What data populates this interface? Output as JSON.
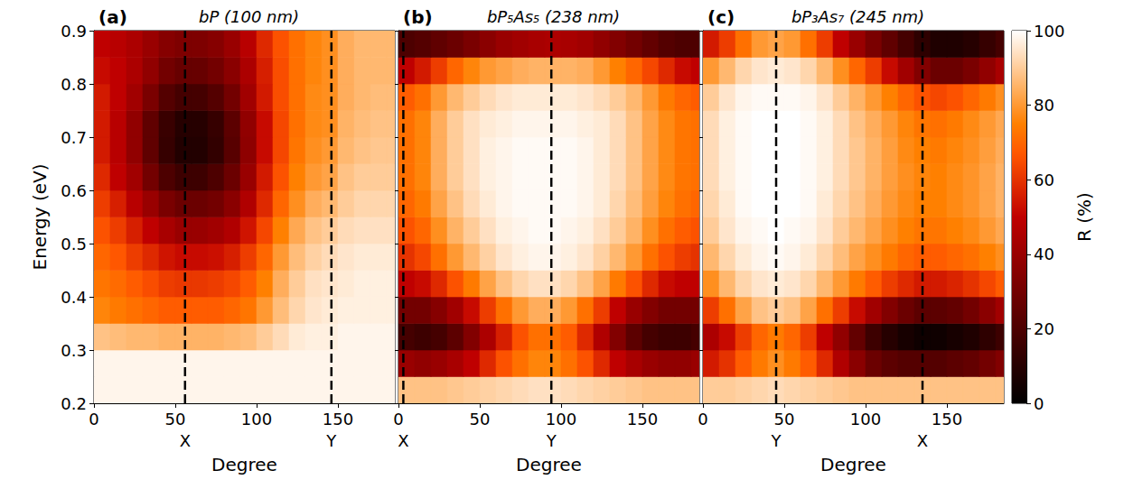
{
  "chart_data": [
    {
      "type": "heatmap",
      "title": "bP (100 nm)",
      "panel_label": "(a)",
      "xlabel": "Degree",
      "ylabel": "Energy (eV)",
      "xlim": [
        0,
        185
      ],
      "xticks": [
        0,
        50,
        100,
        150
      ],
      "ylim": [
        0.2,
        0.9
      ],
      "yticks": [
        0.2,
        0.3,
        0.4,
        0.5,
        0.6,
        0.7,
        0.8,
        0.9
      ],
      "reference_lines": [
        {
          "x": 56,
          "label": "X"
        },
        {
          "x": 146,
          "label": "Y"
        }
      ],
      "cells": {
        "x": [
          5,
          15,
          25,
          35,
          45,
          55,
          65,
          75,
          85,
          95,
          105,
          115,
          125,
          135,
          145,
          155,
          165,
          175,
          185
        ],
        "y": [
          0.225,
          0.275,
          0.325,
          0.375,
          0.425,
          0.475,
          0.525,
          0.575,
          0.625,
          0.675,
          0.725,
          0.775,
          0.825,
          0.875
        ],
        "values": [
          [
            98,
            98,
            98,
            98,
            98,
            98,
            98,
            98,
            98,
            98,
            98,
            98,
            98,
            98,
            98,
            98,
            98,
            98,
            98
          ],
          [
            98,
            98,
            98,
            98,
            98,
            98,
            98,
            98,
            98,
            98,
            98,
            98,
            98,
            98,
            98,
            98,
            98,
            98,
            98
          ],
          [
            88,
            87,
            86,
            86,
            85,
            85,
            85,
            85,
            86,
            87,
            90,
            93,
            96,
            97,
            97,
            98,
            98,
            98,
            98
          ],
          [
            76,
            74,
            72,
            70,
            68,
            68,
            68,
            68,
            70,
            73,
            80,
            87,
            92,
            95,
            96,
            97,
            97,
            97,
            97
          ],
          [
            73,
            71,
            68,
            65,
            62,
            61,
            61,
            62,
            64,
            68,
            75,
            84,
            90,
            94,
            95,
            96,
            97,
            97,
            97
          ],
          [
            70,
            67,
            62,
            58,
            54,
            52,
            52,
            53,
            56,
            62,
            70,
            80,
            87,
            91,
            93,
            95,
            96,
            96,
            96
          ],
          [
            66,
            62,
            56,
            50,
            44,
            40,
            40,
            42,
            46,
            54,
            64,
            75,
            83,
            88,
            90,
            93,
            94,
            94,
            94
          ],
          [
            62,
            56,
            48,
            40,
            32,
            28,
            28,
            30,
            36,
            46,
            58,
            70,
            78,
            84,
            86,
            90,
            92,
            92,
            92
          ],
          [
            58,
            50,
            42,
            30,
            20,
            16,
            16,
            20,
            28,
            40,
            55,
            66,
            75,
            80,
            82,
            88,
            90,
            90,
            90
          ],
          [
            55,
            48,
            38,
            25,
            14,
            9,
            9,
            13,
            23,
            37,
            52,
            64,
            73,
            78,
            80,
            86,
            88,
            89,
            89
          ],
          [
            55,
            48,
            38,
            25,
            15,
            10,
            10,
            14,
            24,
            38,
            52,
            64,
            72,
            77,
            78,
            85,
            87,
            88,
            88
          ],
          [
            55,
            50,
            42,
            32,
            22,
            18,
            18,
            22,
            30,
            42,
            55,
            65,
            72,
            77,
            78,
            84,
            86,
            87,
            87
          ],
          [
            52,
            50,
            45,
            38,
            30,
            27,
            27,
            30,
            36,
            45,
            56,
            65,
            72,
            76,
            78,
            84,
            86,
            86,
            86
          ],
          [
            50,
            48,
            45,
            40,
            35,
            33,
            33,
            35,
            40,
            48,
            58,
            66,
            72,
            76,
            78,
            84,
            86,
            86,
            86
          ]
        ]
      }
    },
    {
      "type": "heatmap",
      "title": "bP₅As₅ (238 nm)",
      "panel_label": "(b)",
      "xlabel": "Degree",
      "xlim": [
        0,
        185
      ],
      "xticks": [
        0,
        50,
        100,
        150
      ],
      "ylim": [
        0.2,
        0.9
      ],
      "yticks": [
        0.2,
        0.3,
        0.4,
        0.5,
        0.6,
        0.7,
        0.8,
        0.9
      ],
      "tick_labels": "x",
      "reference_lines": [
        {
          "x": 3,
          "label": "X"
        },
        {
          "x": 94,
          "label": "Y"
        }
      ],
      "cells": {
        "x": [
          5,
          15,
          25,
          35,
          45,
          55,
          65,
          75,
          85,
          95,
          105,
          115,
          125,
          135,
          145,
          155,
          165,
          175,
          185
        ],
        "y": [
          0.225,
          0.275,
          0.325,
          0.375,
          0.425,
          0.475,
          0.525,
          0.575,
          0.625,
          0.675,
          0.725,
          0.775,
          0.825,
          0.875
        ],
        "values": [
          [
            88,
            88,
            88,
            89,
            90,
            91,
            92,
            93,
            94,
            94,
            93,
            92,
            91,
            90,
            89,
            88,
            88,
            88,
            88
          ],
          [
            40,
            38,
            40,
            44,
            50,
            58,
            66,
            72,
            76,
            76,
            72,
            66,
            58,
            50,
            44,
            40,
            38,
            38,
            40
          ],
          [
            18,
            16,
            18,
            24,
            34,
            45,
            56,
            66,
            72,
            72,
            68,
            58,
            46,
            34,
            24,
            18,
            16,
            16,
            18
          ],
          [
            30,
            30,
            35,
            42,
            52,
            62,
            72,
            80,
            84,
            84,
            80,
            72,
            62,
            50,
            40,
            34,
            30,
            30,
            30
          ],
          [
            50,
            52,
            58,
            66,
            74,
            82,
            88,
            92,
            94,
            94,
            92,
            88,
            82,
            74,
            66,
            58,
            52,
            50,
            50
          ],
          [
            60,
            64,
            72,
            80,
            86,
            91,
            95,
            97,
            98,
            98,
            97,
            95,
            91,
            86,
            80,
            72,
            66,
            62,
            60
          ],
          [
            66,
            70,
            78,
            85,
            90,
            94,
            97,
            98,
            99,
            99,
            98,
            97,
            94,
            90,
            85,
            78,
            72,
            68,
            66
          ],
          [
            70,
            74,
            82,
            88,
            93,
            96,
            98,
            99,
            99,
            99,
            99,
            98,
            96,
            92,
            87,
            81,
            76,
            72,
            70
          ],
          [
            72,
            76,
            84,
            90,
            94,
            97,
            98,
            99,
            99,
            99,
            99,
            98,
            96,
            93,
            88,
            82,
            77,
            73,
            72
          ],
          [
            72,
            76,
            84,
            90,
            94,
            97,
            98,
            99,
            99,
            99,
            99,
            98,
            96,
            93,
            88,
            82,
            77,
            73,
            72
          ],
          [
            72,
            76,
            84,
            90,
            94,
            96,
            97,
            98,
            98,
            98,
            98,
            97,
            96,
            93,
            88,
            82,
            77,
            73,
            72
          ],
          [
            68,
            72,
            80,
            86,
            90,
            93,
            95,
            96,
            96,
            96,
            96,
            95,
            93,
            90,
            86,
            80,
            74,
            70,
            68
          ],
          [
            50,
            55,
            62,
            70,
            76,
            80,
            82,
            84,
            85,
            85,
            85,
            84,
            80,
            75,
            70,
            64,
            58,
            52,
            50
          ],
          [
            20,
            22,
            25,
            28,
            32,
            36,
            40,
            42,
            44,
            45,
            44,
            42,
            38,
            34,
            30,
            26,
            22,
            20,
            20
          ]
        ]
      }
    },
    {
      "type": "heatmap",
      "title": "bP₃As₇ (245 nm)",
      "panel_label": "(c)",
      "xlabel": "Degree",
      "xlim": [
        0,
        185
      ],
      "xticks": [
        0,
        50,
        100,
        150
      ],
      "ylim": [
        0.2,
        0.9
      ],
      "yticks": [
        0.2,
        0.3,
        0.4,
        0.5,
        0.6,
        0.7,
        0.8,
        0.9
      ],
      "tick_labels": "x",
      "reference_lines": [
        {
          "x": 45,
          "label": "Y"
        },
        {
          "x": 135,
          "label": "X"
        }
      ],
      "cells": {
        "x": [
          5,
          15,
          25,
          35,
          45,
          55,
          65,
          75,
          85,
          95,
          105,
          115,
          125,
          135,
          145,
          155,
          165,
          175,
          185
        ],
        "y": [
          0.225,
          0.275,
          0.325,
          0.375,
          0.425,
          0.475,
          0.525,
          0.575,
          0.625,
          0.675,
          0.725,
          0.775,
          0.825,
          0.875
        ],
        "values": [
          [
            90,
            90,
            91,
            92,
            93,
            92,
            91,
            90,
            89,
            88,
            88,
            88,
            88,
            88,
            88,
            88,
            88,
            88,
            88
          ],
          [
            55,
            60,
            68,
            74,
            78,
            74,
            68,
            58,
            46,
            36,
            28,
            24,
            22,
            22,
            22,
            24,
            26,
            30,
            34
          ],
          [
            45,
            52,
            62,
            70,
            74,
            70,
            62,
            50,
            38,
            26,
            16,
            10,
            6,
            4,
            4,
            6,
            8,
            12,
            16
          ],
          [
            62,
            72,
            82,
            88,
            90,
            88,
            82,
            72,
            62,
            52,
            42,
            34,
            28,
            24,
            24,
            26,
            30,
            36,
            42
          ],
          [
            78,
            86,
            92,
            95,
            96,
            95,
            92,
            86,
            80,
            74,
            68,
            62,
            58,
            55,
            55,
            57,
            60,
            64,
            68
          ],
          [
            86,
            92,
            96,
            98,
            99,
            98,
            96,
            92,
            87,
            82,
            78,
            74,
            70,
            68,
            68,
            70,
            72,
            75,
            78
          ],
          [
            90,
            95,
            98,
            99,
            100,
            99,
            98,
            95,
            90,
            86,
            82,
            78,
            75,
            73,
            73,
            75,
            77,
            80,
            83
          ],
          [
            92,
            96,
            99,
            100,
            100,
            100,
            99,
            96,
            92,
            88,
            84,
            80,
            77,
            75,
            75,
            77,
            79,
            82,
            85
          ],
          [
            93,
            97,
            99,
            100,
            100,
            100,
            99,
            97,
            93,
            89,
            85,
            81,
            78,
            76,
            75,
            77,
            79,
            82,
            85
          ],
          [
            93,
            97,
            99,
            100,
            100,
            100,
            99,
            97,
            93,
            89,
            85,
            81,
            77,
            75,
            74,
            76,
            78,
            81,
            84
          ],
          [
            93,
            97,
            99,
            100,
            100,
            100,
            99,
            97,
            93,
            88,
            84,
            80,
            76,
            73,
            72,
            74,
            77,
            80,
            83
          ],
          [
            90,
            95,
            98,
            99,
            99,
            99,
            98,
            95,
            90,
            85,
            80,
            75,
            70,
            66,
            64,
            66,
            70,
            74,
            78
          ],
          [
            80,
            86,
            92,
            95,
            96,
            95,
            92,
            86,
            78,
            70,
            62,
            52,
            42,
            34,
            28,
            28,
            32,
            38,
            44
          ],
          [
            55,
            62,
            72,
            80,
            82,
            80,
            72,
            62,
            50,
            40,
            32,
            25,
            18,
            12,
            8,
            8,
            10,
            14,
            18
          ]
        ]
      },
      "colorbar": {
        "label": "R (%)",
        "range": [
          0,
          100
        ],
        "ticks": [
          0,
          20,
          40,
          60,
          80,
          100
        ]
      }
    }
  ]
}
